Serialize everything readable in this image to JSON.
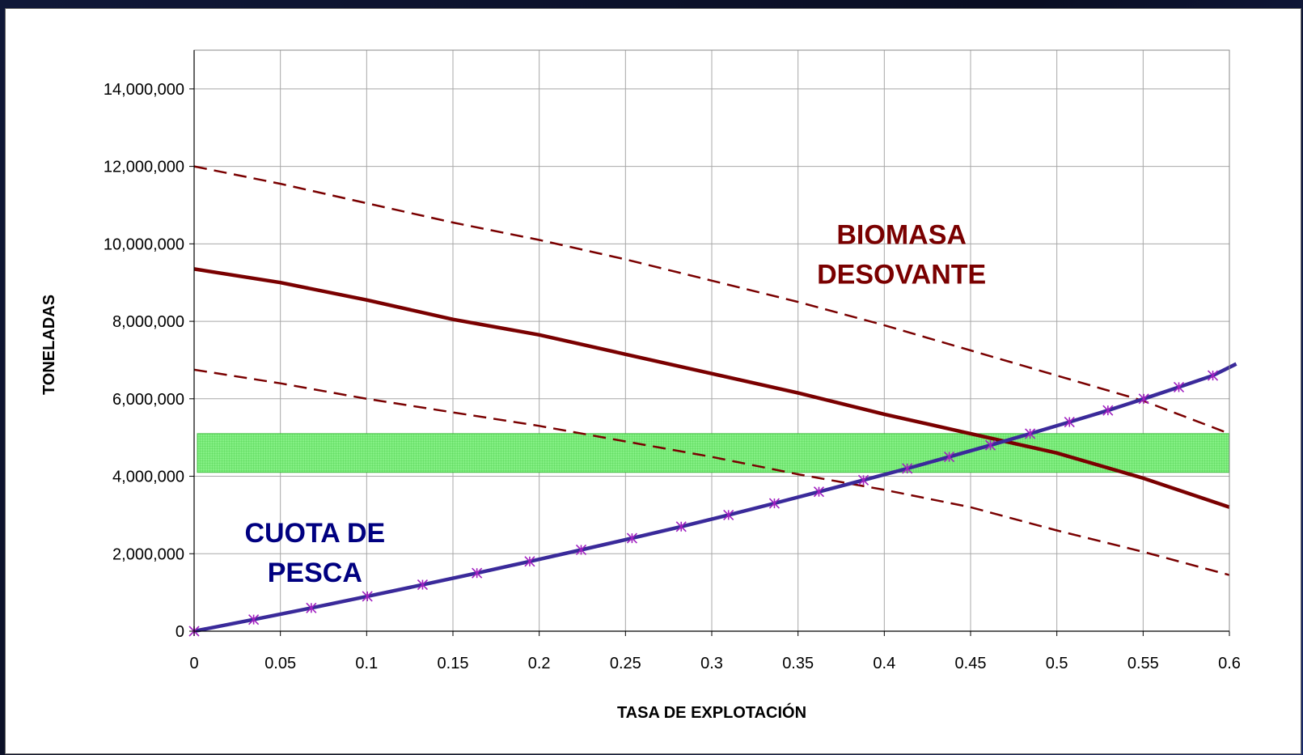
{
  "chart_data": {
    "type": "line",
    "xlabel": "TASA DE EXPLOTACIÓN",
    "ylabel": "TONELADAS",
    "xlim": [
      0,
      0.6
    ],
    "ylim": [
      0,
      15000000
    ],
    "x_ticks": [
      "0",
      "0.05",
      "0.1",
      "0.15",
      "0.2",
      "0.25",
      "0.3",
      "0.35",
      "0.4",
      "0.45",
      "0.5",
      "0.55",
      "0.6"
    ],
    "y_ticks": [
      "0",
      "2,000,000",
      "4,000,000",
      "6,000,000",
      "8,000,000",
      "10,000,000",
      "12,000,000",
      "14,000,000"
    ],
    "grid": true,
    "annotations": [
      {
        "lines": [
          "BIOMASA",
          "DESOVANTE"
        ],
        "color": "#7a0000",
        "x": 0.41,
        "y": 10000000,
        "anchor": "middle"
      },
      {
        "lines": [
          "CUOTA DE",
          "PESCA"
        ],
        "color": "#000080",
        "x": 0.07,
        "y": 2300000,
        "anchor": "middle"
      }
    ],
    "band": {
      "y0": 4100000,
      "y1": 5100000,
      "x0": 0.0,
      "x1": 0.6,
      "color": "#66ee66"
    },
    "series": [
      {
        "role": "biomasa-upper",
        "style": "dashed",
        "color": "#7a0000",
        "x": [
          0,
          0.05,
          0.1,
          0.15,
          0.2,
          0.25,
          0.3,
          0.35,
          0.4,
          0.45,
          0.5,
          0.55,
          0.6
        ],
        "y": [
          12000000,
          11550000,
          11050000,
          10550000,
          10100000,
          9600000,
          9050000,
          8500000,
          7900000,
          7250000,
          6600000,
          5950000,
          5100000
        ]
      },
      {
        "role": "biomasa",
        "style": "solid",
        "color": "#7a0000",
        "x": [
          0,
          0.05,
          0.1,
          0.15,
          0.2,
          0.25,
          0.3,
          0.35,
          0.4,
          0.45,
          0.5,
          0.55,
          0.6
        ],
        "y": [
          9350000,
          9000000,
          8550000,
          8050000,
          7650000,
          7150000,
          6650000,
          6150000,
          5600000,
          5100000,
          4600000,
          3950000,
          3200000
        ]
      },
      {
        "role": "biomasa-lower",
        "style": "dashed",
        "color": "#7a0000",
        "x": [
          0,
          0.05,
          0.1,
          0.15,
          0.2,
          0.25,
          0.3,
          0.35,
          0.4,
          0.45,
          0.5,
          0.55,
          0.6
        ],
        "y": [
          6750000,
          6400000,
          6000000,
          5650000,
          5300000,
          4900000,
          4500000,
          4050000,
          3650000,
          3200000,
          2600000,
          2050000,
          1450000
        ]
      },
      {
        "role": "cuota",
        "style": "solid-markers",
        "color": "#3a2a9a",
        "marker_color": "#a020c0",
        "x": [
          0,
          0.0345,
          0.0679,
          0.1004,
          0.1324,
          0.1639,
          0.1945,
          0.2243,
          0.2538,
          0.2823,
          0.3097,
          0.3363,
          0.3621,
          0.3879,
          0.4133,
          0.4376,
          0.4615,
          0.4845,
          0.5073,
          0.5296,
          0.5504,
          0.5707,
          0.5904,
          0.61
        ],
        "y": [
          0,
          300000,
          600000,
          900000,
          1200000,
          1500000,
          1800000,
          2100000,
          2400000,
          2700000,
          3000000,
          3300000,
          3600000,
          3900000,
          4200000,
          4500000,
          4800000,
          5100000,
          5400000,
          5700000,
          6000000,
          6300000,
          6600000,
          6900000
        ]
      }
    ]
  }
}
